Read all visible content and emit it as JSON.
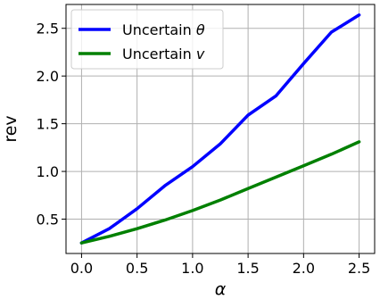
{
  "chart_data": {
    "type": "line",
    "title": "",
    "xlabel": "α",
    "ylabel": "rev",
    "xlim": [
      -0.14,
      2.64
    ],
    "ylim": [
      0.14,
      2.75
    ],
    "grid": true,
    "legend_position": "top-left",
    "xticks": [
      0.0,
      0.5,
      1.0,
      1.5,
      2.0,
      2.5
    ],
    "xtick_labels": [
      "0.0",
      "0.5",
      "1.0",
      "1.5",
      "2.0",
      "2.5"
    ],
    "yticks": [
      0.5,
      1.0,
      1.5,
      2.0,
      2.5
    ],
    "ytick_labels": [
      "0.5",
      "1.0",
      "1.5",
      "2.0",
      "2.5"
    ],
    "x": [
      0.0,
      0.25,
      0.5,
      0.75,
      1.0,
      1.25,
      1.5,
      1.75,
      2.0,
      2.25,
      2.5
    ],
    "series": [
      {
        "name": "Uncertain θ",
        "name_prefix": "Uncertain ",
        "name_symbol": "θ",
        "color": "#0000ff",
        "values": [
          0.25,
          0.4,
          0.61,
          0.85,
          1.05,
          1.29,
          1.59,
          1.79,
          2.13,
          2.46,
          2.64
        ]
      },
      {
        "name": "Uncertain v",
        "name_prefix": "Uncertain ",
        "name_symbol": "v",
        "color": "#008000",
        "values": [
          0.25,
          0.32,
          0.4,
          0.49,
          0.59,
          0.7,
          0.82,
          0.94,
          1.06,
          1.18,
          1.31
        ]
      }
    ]
  }
}
